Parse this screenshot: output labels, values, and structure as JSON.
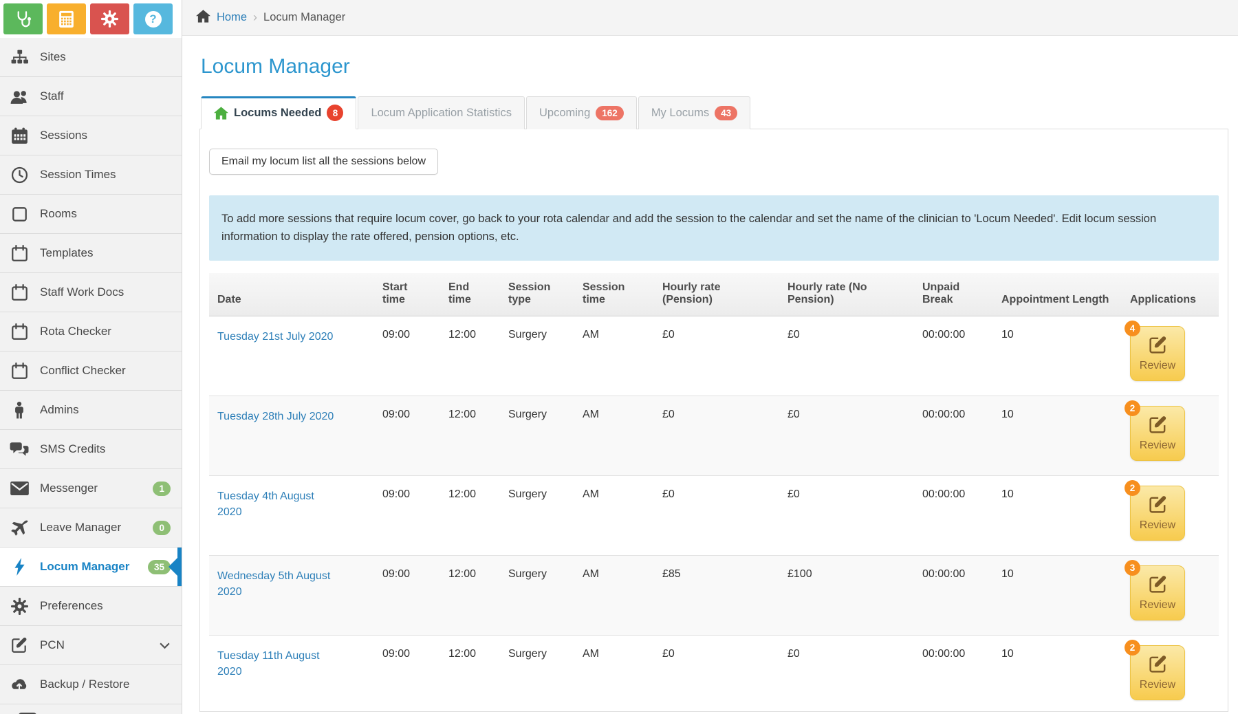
{
  "toolbar": {
    "buttons": [
      {
        "icon": "stethoscope-icon",
        "color": "#5cb85c"
      },
      {
        "icon": "calculator-icon",
        "color": "#f8af2d"
      },
      {
        "icon": "gear-icon",
        "color": "#d9534f"
      },
      {
        "icon": "help-icon",
        "color": "#56b8de"
      }
    ]
  },
  "sidebar": {
    "items": [
      {
        "label": "Sites",
        "icon": "sitemap-icon"
      },
      {
        "label": "Staff",
        "icon": "users-icon"
      },
      {
        "label": "Sessions",
        "icon": "calendar-filled-icon"
      },
      {
        "label": "Session Times",
        "icon": "clock-icon"
      },
      {
        "label": "Rooms",
        "icon": "square-icon"
      },
      {
        "label": "Templates",
        "icon": "calendar-outline-icon"
      },
      {
        "label": "Staff Work Docs",
        "icon": "calendar-outline-icon"
      },
      {
        "label": "Rota Checker",
        "icon": "calendar-outline-icon"
      },
      {
        "label": "Conflict Checker",
        "icon": "calendar-outline-icon"
      },
      {
        "label": "Admins",
        "icon": "person-icon"
      },
      {
        "label": "SMS Credits",
        "icon": "comments-icon"
      },
      {
        "label": "Messenger",
        "icon": "envelope-icon",
        "badge": "1"
      },
      {
        "label": "Leave Manager",
        "icon": "plane-icon",
        "badge": "0"
      },
      {
        "label": "Locum Manager",
        "icon": "bolt-icon",
        "badge": "35",
        "active": true
      },
      {
        "label": "Preferences",
        "icon": "gear-dark-icon"
      },
      {
        "label": "PCN",
        "icon": "edit-icon",
        "chevron": true
      },
      {
        "label": "Backup / Restore",
        "icon": "cloud-upload-icon"
      }
    ],
    "badge_color": "#8ebf75",
    "active_color": "#1883c5"
  },
  "breadcrumb": {
    "home": "Home",
    "current": "Locum Manager"
  },
  "page": {
    "title": "Locum Manager"
  },
  "tabs": [
    {
      "label": "Locums Needed",
      "badge": "8",
      "active": true,
      "icon": "home-icon"
    },
    {
      "label": "Locum Application Statistics"
    },
    {
      "label": "Upcoming",
      "badge": "162"
    },
    {
      "label": "My Locums",
      "badge": "43"
    }
  ],
  "actions": {
    "email_button": "Email my locum list all the sessions below"
  },
  "notice": "To add more sessions that require locum cover, go back to your rota calendar and add the session to the calendar and set the name of the clinician to 'Locum Needed'. Edit locum session information to display the rate offered, pension options, etc.",
  "table": {
    "headers": [
      "Date",
      "Start time",
      "End time",
      "Session type",
      "Session time",
      "Hourly rate (Pension)",
      "Hourly rate (No Pension)",
      "Unpaid Break",
      "Appointment Length",
      "Applications"
    ],
    "review_label": "Review",
    "rows": [
      {
        "date": "Tuesday 21st July 2020",
        "start": "09:00",
        "end": "12:00",
        "type": "Surgery",
        "time": "AM",
        "rate_pension": "£0",
        "rate_no_pension": "£0",
        "break": "00:00:00",
        "appt": "10",
        "applications": "4"
      },
      {
        "date": "Tuesday 28th July 2020",
        "start": "09:00",
        "end": "12:00",
        "type": "Surgery",
        "time": "AM",
        "rate_pension": "£0",
        "rate_no_pension": "£0",
        "break": "00:00:00",
        "appt": "10",
        "applications": "2"
      },
      {
        "date": "Tuesday 4th August 2020",
        "start": "09:00",
        "end": "12:00",
        "type": "Surgery",
        "time": "AM",
        "rate_pension": "£0",
        "rate_no_pension": "£0",
        "break": "00:00:00",
        "appt": "10",
        "applications": "2"
      },
      {
        "date": "Wednesday 5th August 2020",
        "start": "09:00",
        "end": "12:00",
        "type": "Surgery",
        "time": "AM",
        "rate_pension": "£85",
        "rate_no_pension": "£100",
        "break": "00:00:00",
        "appt": "10",
        "applications": "3"
      },
      {
        "date": "Tuesday 11th August 2020",
        "start": "09:00",
        "end": "12:00",
        "type": "Surgery",
        "time": "AM",
        "rate_pension": "£0",
        "rate_no_pension": "£0",
        "break": "00:00:00",
        "appt": "10",
        "applications": "2"
      }
    ],
    "review_badge_color": "#f78f1e",
    "review_button_color": "#f7cb4e"
  }
}
